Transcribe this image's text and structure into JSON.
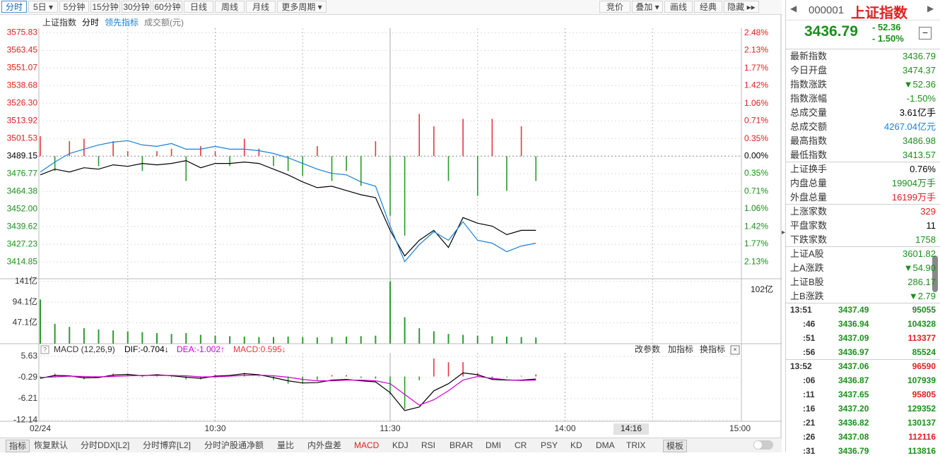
{
  "toolbar": {
    "periods": [
      "分时",
      "5日",
      "5分钟",
      "15分钟",
      "30分钟",
      "60分钟",
      "日线",
      "周线",
      "月线",
      "更多周期"
    ],
    "tools": [
      "竞价",
      "叠加",
      "画线",
      "经典",
      "隐藏"
    ]
  },
  "chart_data": [
    {
      "type": "line",
      "title": "上证指数",
      "subtitle": "分时",
      "x": [
        0,
        5,
        10,
        15,
        20,
        25,
        30,
        35,
        40,
        45,
        50,
        55,
        60,
        65,
        70,
        75,
        80,
        85,
        90,
        95,
        100,
        105,
        110,
        115,
        120,
        125,
        130,
        135,
        140,
        145,
        150,
        155,
        160,
        165,
        170
      ],
      "series": [
        {
          "name": "分时",
          "color": "#000000",
          "values": [
            3476,
            3480,
            3478,
            3481,
            3480,
            3483,
            3482,
            3484,
            3483,
            3484,
            3486,
            3481,
            3484,
            3484,
            3485,
            3484,
            3480,
            3476,
            3471,
            3467,
            3468,
            3465,
            3462,
            3460,
            3437,
            3419,
            3430,
            3437,
            3425,
            3446,
            3442,
            3440,
            3434,
            3437,
            3437
          ]
        },
        {
          "name": "领先指标",
          "color": "#1a7fd4",
          "values": [
            3478,
            3485,
            3491,
            3494,
            3497,
            3499,
            3500,
            3497,
            3496,
            3498,
            3494,
            3494,
            3496,
            3494,
            3494,
            3493,
            3491,
            3488,
            3484,
            3480,
            3477,
            3476,
            3471,
            3468,
            3440,
            3415,
            3427,
            3436,
            3430,
            3443,
            3430,
            3428,
            3422,
            3426,
            3428
          ]
        },
        {
          "type": "bar",
          "axis": "y2",
          "up_color": "#e8383d",
          "down_color": "#2b9b2b",
          "values": [
            0.4,
            -0.3,
            0.3,
            0.35,
            -0.2,
            0.3,
            0.1,
            -0.3,
            0.1,
            0.15,
            -0.5,
            0.2,
            0.1,
            -0.2,
            0.35,
            0.15,
            -0.2,
            -0.3,
            -0.4,
            0.2,
            -0.5,
            -0.3,
            -0.6,
            0.3,
            -1.2,
            -1.6,
            0.85,
            0.6,
            -0.5,
            0.75,
            -0.8,
            0.75,
            -0.7,
            0.6,
            -0.5
          ]
        }
      ],
      "xlim": [
        0,
        240
      ],
      "xticks": [
        {
          "value": 0,
          "label": "02/24"
        },
        {
          "value": 60,
          "label": "10:30"
        },
        {
          "value": 120,
          "label": "11:30"
        },
        {
          "value": 180,
          "label": "14:00"
        },
        {
          "value": 240,
          "label": "15:00"
        }
      ],
      "ylim": [
        3403,
        3579
      ],
      "yticks": [
        3575.83,
        3563.45,
        3551.07,
        3538.68,
        {
          "value": 3526.3,
          "label": "3526.30"
        },
        3513.92,
        3501.53,
        3489.15,
        3476.77,
        3464.38,
        {
          "value": 3452,
          "label": "3452.00"
        },
        3439.62,
        3427.23,
        3414.85
      ],
      "y2lim": [
        -2.469,
        2.575
      ],
      "y2ticks": [
        {
          "value": 2.48,
          "label": "2.48%"
        },
        {
          "value": 2.13,
          "label": "2.13%"
        },
        {
          "value": 1.77,
          "label": "1.77%"
        },
        {
          "value": 1.42,
          "label": "1.42%"
        },
        {
          "value": 1.06,
          "label": "1.06%"
        },
        {
          "value": 0.71,
          "label": "0.71%"
        },
        {
          "value": 0.35,
          "label": "0.35%"
        },
        {
          "value": 0,
          "label": "0.00%"
        },
        {
          "value": -0.35,
          "label": "0.35%"
        },
        {
          "value": -0.71,
          "label": "0.71%"
        },
        {
          "value": -1.06,
          "label": "1.06%"
        },
        {
          "value": -1.42,
          "label": "1.42%"
        },
        {
          "value": -1.77,
          "label": "1.77%"
        },
        {
          "value": -2.13,
          "label": "2.13%"
        }
      ],
      "grid": true,
      "cursor_time": "14:16"
    },
    {
      "type": "bar",
      "title": "成交额(元)",
      "x": [
        0,
        5,
        10,
        15,
        20,
        25,
        30,
        35,
        40,
        45,
        50,
        55,
        60,
        65,
        70,
        75,
        80,
        85,
        90,
        95,
        100,
        105,
        110,
        115,
        120,
        125,
        130,
        135,
        140,
        145,
        150,
        155,
        160,
        165,
        170
      ],
      "values": [
        100,
        45,
        38,
        35,
        32,
        30,
        28,
        26,
        24,
        22,
        24,
        20,
        18,
        17,
        16,
        15,
        15,
        16,
        15,
        14,
        15,
        16,
        17,
        18,
        141,
        60,
        35,
        28,
        22,
        20,
        18,
        17,
        16,
        15,
        14
      ],
      "color": "#2b9b2b",
      "xlim": [
        0,
        240
      ],
      "ylim": [
        0,
        147
      ],
      "yticks": [
        {
          "value": 141,
          "label": "141亿"
        },
        {
          "value": 94.1,
          "label": "94.1亿"
        },
        {
          "value": 47.1,
          "label": "47.1亿"
        }
      ],
      "cursor_label": "102亿"
    },
    {
      "type": "macd",
      "title": "MACD (12,26,9)",
      "readouts": [
        {
          "text": "DIF:-0.704↓",
          "color": "#000000"
        },
        {
          "text": "DEA:-1.002↑",
          "color": "#d000d0"
        },
        {
          "text": "MACD:0.595↓",
          "color": "#e8383d"
        }
      ],
      "tools": [
        "改参数",
        "加指标",
        "换指标"
      ],
      "x": [
        0,
        5,
        10,
        15,
        20,
        25,
        30,
        35,
        40,
        45,
        50,
        55,
        60,
        65,
        70,
        75,
        80,
        85,
        90,
        95,
        100,
        105,
        110,
        115,
        120,
        125,
        130,
        135,
        140,
        145,
        150,
        155,
        160,
        165,
        170
      ],
      "series": [
        {
          "color": "#000000",
          "values": [
            -0.5,
            0.3,
            0.2,
            -0.4,
            -0.3,
            0.4,
            0.6,
            0.2,
            0.5,
            0.2,
            -0.2,
            -0.5,
            0.1,
            0.3,
            0.8,
            0.5,
            -0.3,
            -1.2,
            -1.8,
            -1.7,
            -1.0,
            -0.8,
            -1.2,
            -1.5,
            -4.5,
            -9.5,
            -8.5,
            -4,
            -2,
            1.0,
            0.5,
            -0.8,
            -1.0,
            -1.0,
            -0.7
          ]
        },
        {
          "color": "#d000d0",
          "values": [
            -0.3,
            -0.1,
            0.1,
            0,
            -0.1,
            0,
            0.2,
            0.3,
            0.3,
            0.3,
            0.2,
            -0.1,
            -0.1,
            0.1,
            0.3,
            0.4,
            0.2,
            -0.2,
            -0.8,
            -1.2,
            -1.2,
            -1.0,
            -1.0,
            -1.2,
            -2.0,
            -5.0,
            -8.0,
            -6.5,
            -4.0,
            -1.0,
            0,
            -0.5,
            -0.9,
            -1.1,
            -1.0
          ]
        },
        {
          "type": "bar",
          "up_color": "#e8383d",
          "down_color": "#2b9b2b",
          "values": [
            -0.4,
            0.8,
            0.2,
            -0.8,
            -0.4,
            0.8,
            0.8,
            -0.2,
            0.4,
            -0.2,
            -0.8,
            -0.8,
            0.4,
            0.4,
            1.0,
            0.2,
            -1.0,
            -2.0,
            -2.0,
            -1.0,
            0.4,
            0.4,
            -0.4,
            -0.6,
            -5.0,
            -9.0,
            -1.0,
            5.0,
            4.0,
            4.0,
            1.0,
            -0.6,
            -0.2,
            0.2,
            0.6
          ]
        }
      ],
      "xlim": [
        0,
        240
      ],
      "ylim": [
        -12.5,
        6.6
      ],
      "yticks": [
        5.63,
        -0.29,
        -6.21,
        -12.14
      ]
    }
  ],
  "quote": {
    "code": "000001",
    "name": "上证指数",
    "price": "3436.79",
    "change": "- 52.36",
    "change_pct": "- 1.50%",
    "stats": [
      [
        {
          "label": "最新指数",
          "value": "3436.79",
          "color": "#1a8f1a"
        },
        {
          "label": "今日开盘",
          "value": "3474.37",
          "color": "#1a8f1a"
        },
        {
          "label": "指数涨跌",
          "value": "▼52.36",
          "color": "#1a8f1a"
        },
        {
          "label": "指数涨幅",
          "value": "-1.50%",
          "color": "#1a8f1a"
        },
        {
          "label": "总成交量",
          "value": "3.61亿手",
          "color": "#000000"
        },
        {
          "label": "总成交额",
          "value": "4267.04亿元",
          "color": "#1a7fd4"
        },
        {
          "label": "最高指数",
          "value": "3486.98",
          "color": "#1a8f1a"
        },
        {
          "label": "最低指数",
          "value": "3413.57",
          "color": "#1a8f1a"
        }
      ],
      [
        {
          "label": "上证换手",
          "value": "0.76%",
          "color": "#000000"
        },
        {
          "label": "内盘总量",
          "value": "19904万手",
          "color": "#1a8f1a"
        },
        {
          "label": "外盘总量",
          "value": "16199万手",
          "color": "#e02020"
        }
      ],
      [
        {
          "label": "上涨家数",
          "value": "329",
          "color": "#e02020"
        },
        {
          "label": "平盘家数",
          "value": "11",
          "color": "#000000"
        },
        {
          "label": "下跌家数",
          "value": "1758",
          "color": "#1a8f1a"
        }
      ],
      [
        {
          "label": "上证A股",
          "value": "3601.82",
          "color": "#1a8f1a"
        },
        {
          "label": "上A涨跌",
          "value": "▼54.90",
          "color": "#1a8f1a"
        },
        {
          "label": "上证B股",
          "value": "286.17",
          "color": "#1a8f1a"
        },
        {
          "label": "上B涨跌",
          "value": "▼2.79",
          "color": "#1a8f1a"
        }
      ]
    ]
  },
  "trades": [
    [
      {
        "time": "13:51",
        "price": "3437.49",
        "volume": "95055",
        "color": "#1a8f1a"
      },
      {
        "time": ":46",
        "price": "3436.94",
        "volume": "104328",
        "color": "#1a8f1a"
      },
      {
        "time": ":51",
        "price": "3437.09",
        "volume": "113377",
        "color": "#e02020"
      },
      {
        "time": ":56",
        "price": "3436.97",
        "volume": "85524",
        "color": "#1a8f1a"
      }
    ],
    [
      {
        "time": "13:52",
        "price": "3437.06",
        "volume": "96590",
        "color": "#e02020"
      },
      {
        "time": ":06",
        "price": "3436.87",
        "volume": "107939",
        "color": "#1a8f1a"
      },
      {
        "time": ":11",
        "price": "3437.65",
        "volume": "95805",
        "color": "#e02020"
      },
      {
        "time": ":16",
        "price": "3437.20",
        "volume": "129352",
        "color": "#1a8f1a"
      },
      {
        "time": ":21",
        "price": "3436.82",
        "volume": "130137",
        "color": "#1a8f1a"
      },
      {
        "time": ":26",
        "price": "3437.08",
        "volume": "112116",
        "color": "#e02020"
      },
      {
        "time": ":31",
        "price": "3436.79",
        "volume": "113816",
        "color": "#1a8f1a"
      }
    ]
  ],
  "bottom_tabs": [
    "指标",
    "恢复默认",
    "分时DDX[L2]",
    "分时博弈[L2]",
    "分时沪股通净额",
    "量比",
    "内外盘差",
    "MACD",
    "KDJ",
    "RSI",
    "BRAR",
    "DMI",
    "CR",
    "PSY",
    "KD",
    "DMA",
    "TRIX",
    "模板"
  ]
}
